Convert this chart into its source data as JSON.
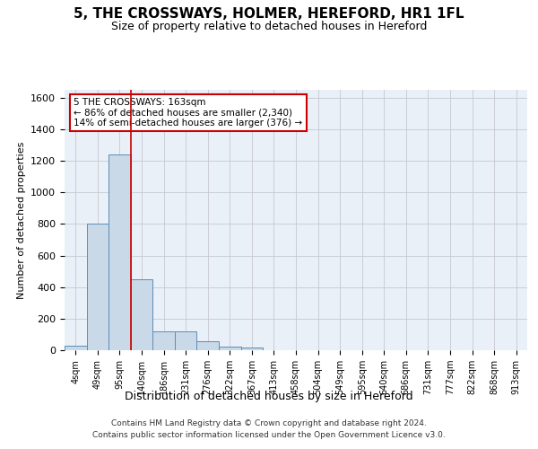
{
  "title": "5, THE CROSSWAYS, HOLMER, HEREFORD, HR1 1FL",
  "subtitle": "Size of property relative to detached houses in Hereford",
  "xlabel": "Distribution of detached houses by size in Hereford",
  "ylabel": "Number of detached properties",
  "footer_line1": "Contains HM Land Registry data © Crown copyright and database right 2024.",
  "footer_line2": "Contains public sector information licensed under the Open Government Licence v3.0.",
  "bar_labels": [
    "4sqm",
    "49sqm",
    "95sqm",
    "140sqm",
    "186sqm",
    "231sqm",
    "276sqm",
    "322sqm",
    "367sqm",
    "413sqm",
    "458sqm",
    "504sqm",
    "549sqm",
    "595sqm",
    "640sqm",
    "686sqm",
    "731sqm",
    "777sqm",
    "822sqm",
    "868sqm",
    "913sqm"
  ],
  "bar_values": [
    30,
    800,
    1240,
    450,
    120,
    120,
    55,
    25,
    15,
    0,
    0,
    0,
    0,
    0,
    0,
    0,
    0,
    0,
    0,
    0,
    0
  ],
  "bar_color": "#c9d9e8",
  "bar_edge_color": "#5b8db8",
  "grid_color": "#c8c8d0",
  "annotation_text": "5 THE CROSSWAYS: 163sqm\n← 86% of detached houses are smaller (2,340)\n14% of semi-detached houses are larger (376) →",
  "annotation_box_color": "#ffffff",
  "annotation_box_edge_color": "#cc0000",
  "vline_x": 2.5,
  "vline_color": "#cc0000",
  "ylim": [
    0,
    1650
  ],
  "yticks": [
    0,
    200,
    400,
    600,
    800,
    1000,
    1200,
    1400,
    1600
  ],
  "bg_color": "#eaf0f7"
}
